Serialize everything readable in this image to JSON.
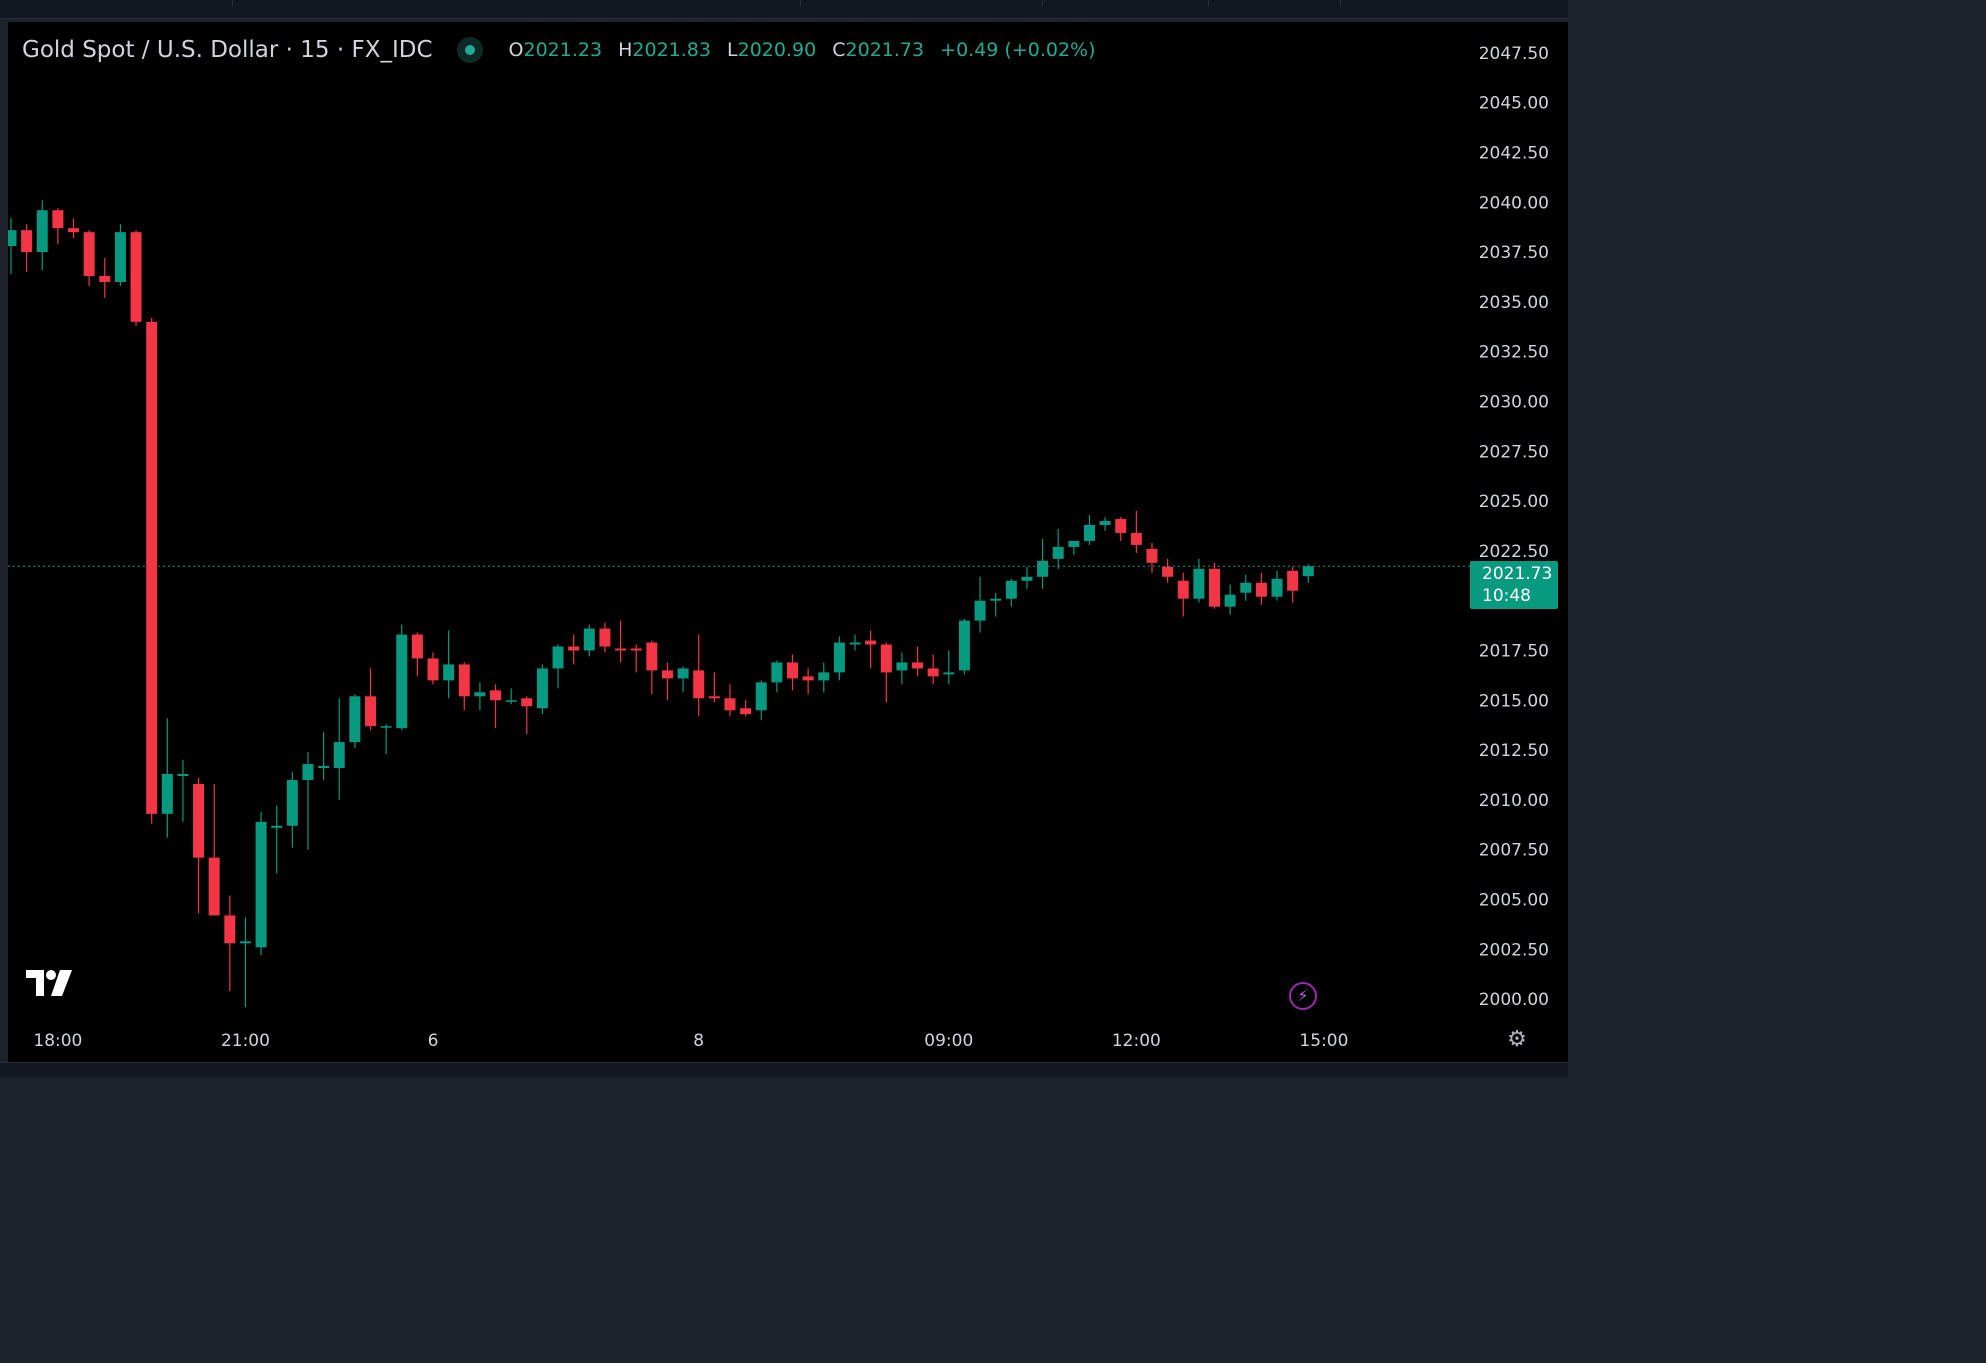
{
  "header": {
    "symbol": "Gold Spot / U.S. Dollar · 15 · FX_IDC",
    "o_label": "O",
    "o_value": "2021.23",
    "h_label": "H",
    "h_value": "2021.83",
    "l_label": "L",
    "l_value": "2020.90",
    "c_label": "C",
    "c_value": "2021.73",
    "change": "+0.49 (+0.02%)"
  },
  "last_price": {
    "price": "2021.73",
    "countdown": "10:48"
  },
  "icons": {
    "logo": "tradingview-logo-icon",
    "bolt": "lightning-bolt-icon",
    "gear": "gear-icon",
    "live": "market-open-dot-icon"
  },
  "colors": {
    "background": "#000000",
    "up": "#089981",
    "down": "#f23645",
    "axis_text": "#d1d4dc",
    "price_line": "#089981"
  },
  "chart_data": {
    "type": "candlestick",
    "title": "Gold Spot / U.S. Dollar · 15 · FX_IDC",
    "ylim": [
      1998.85,
      2049.05
    ],
    "y_ticks": [
      "2000.00",
      "2002.50",
      "2005.00",
      "2007.50",
      "2010.00",
      "2012.50",
      "2015.00",
      "2017.50",
      "2020.00",
      "2022.50",
      "2025.00",
      "2027.50",
      "2030.00",
      "2032.50",
      "2035.00",
      "2037.50",
      "2040.00",
      "2042.50",
      "2045.00",
      "2047.50"
    ],
    "x_ticks": [
      {
        "label": "18:00",
        "bar": 3
      },
      {
        "label": "21:00",
        "bar": 15
      },
      {
        "label": "6",
        "bar": 27
      },
      {
        "label": "8",
        "bar": 44
      },
      {
        "label": "09:00",
        "bar": 60
      },
      {
        "label": "12:00",
        "bar": 72
      },
      {
        "label": "15:00",
        "bar": 84
      }
    ],
    "last_price": 2021.73,
    "grid": false,
    "candles": [
      {
        "o": 2037.8,
        "h": 2039.2,
        "l": 2036.4,
        "c": 2038.6
      },
      {
        "o": 2038.6,
        "h": 2038.9,
        "l": 2036.5,
        "c": 2037.5
      },
      {
        "o": 2037.5,
        "h": 2040.1,
        "l": 2036.6,
        "c": 2039.6
      },
      {
        "o": 2039.6,
        "h": 2039.7,
        "l": 2037.9,
        "c": 2038.7
      },
      {
        "o": 2038.7,
        "h": 2039.2,
        "l": 2038.2,
        "c": 2038.5
      },
      {
        "o": 2038.5,
        "h": 2038.6,
        "l": 2035.8,
        "c": 2036.3
      },
      {
        "o": 2036.3,
        "h": 2037.2,
        "l": 2035.2,
        "c": 2036.0
      },
      {
        "o": 2036.0,
        "h": 2038.9,
        "l": 2035.8,
        "c": 2038.5
      },
      {
        "o": 2038.5,
        "h": 2038.6,
        "l": 2033.8,
        "c": 2034.0
      },
      {
        "o": 2034.0,
        "h": 2034.2,
        "l": 2008.8,
        "c": 2009.3
      },
      {
        "o": 2009.3,
        "h": 2014.1,
        "l": 2008.1,
        "c": 2011.3
      },
      {
        "o": 2011.2,
        "h": 2012.0,
        "l": 2008.9,
        "c": 2011.3
      },
      {
        "o": 2010.8,
        "h": 2011.1,
        "l": 2004.3,
        "c": 2007.1
      },
      {
        "o": 2007.1,
        "h": 2010.8,
        "l": 2004.2,
        "c": 2004.2
      },
      {
        "o": 2004.2,
        "h": 2005.2,
        "l": 2000.4,
        "c": 2002.8
      },
      {
        "o": 2002.8,
        "h": 2004.1,
        "l": 1999.6,
        "c": 2002.9
      },
      {
        "o": 2002.6,
        "h": 2009.4,
        "l": 2002.2,
        "c": 2008.9
      },
      {
        "o": 2008.6,
        "h": 2009.7,
        "l": 2006.3,
        "c": 2008.7
      },
      {
        "o": 2008.7,
        "h": 2011.4,
        "l": 2007.6,
        "c": 2011.0
      },
      {
        "o": 2011.0,
        "h": 2012.4,
        "l": 2007.5,
        "c": 2011.8
      },
      {
        "o": 2011.6,
        "h": 2013.4,
        "l": 2011.0,
        "c": 2011.7
      },
      {
        "o": 2011.6,
        "h": 2015.1,
        "l": 2010.0,
        "c": 2012.9
      },
      {
        "o": 2012.9,
        "h": 2015.3,
        "l": 2012.6,
        "c": 2015.2
      },
      {
        "o": 2015.2,
        "h": 2016.6,
        "l": 2013.5,
        "c": 2013.7
      },
      {
        "o": 2013.7,
        "h": 2013.8,
        "l": 2012.3,
        "c": 2013.7
      },
      {
        "o": 2013.6,
        "h": 2018.8,
        "l": 2013.5,
        "c": 2018.3
      },
      {
        "o": 2018.3,
        "h": 2018.4,
        "l": 2016.2,
        "c": 2017.1
      },
      {
        "o": 2017.1,
        "h": 2017.4,
        "l": 2015.8,
        "c": 2016.0
      },
      {
        "o": 2016.0,
        "h": 2018.5,
        "l": 2015.1,
        "c": 2016.8
      },
      {
        "o": 2016.8,
        "h": 2016.9,
        "l": 2014.5,
        "c": 2015.2
      },
      {
        "o": 2015.2,
        "h": 2015.9,
        "l": 2014.5,
        "c": 2015.4
      },
      {
        "o": 2015.5,
        "h": 2015.8,
        "l": 2013.6,
        "c": 2015.0
      },
      {
        "o": 2015.0,
        "h": 2015.6,
        "l": 2014.8,
        "c": 2015.0
      },
      {
        "o": 2015.1,
        "h": 2015.2,
        "l": 2013.3,
        "c": 2014.7
      },
      {
        "o": 2014.6,
        "h": 2016.8,
        "l": 2014.3,
        "c": 2016.6
      },
      {
        "o": 2016.6,
        "h": 2017.8,
        "l": 2015.6,
        "c": 2017.7
      },
      {
        "o": 2017.7,
        "h": 2018.3,
        "l": 2016.8,
        "c": 2017.5
      },
      {
        "o": 2017.5,
        "h": 2018.8,
        "l": 2017.2,
        "c": 2018.6
      },
      {
        "o": 2018.6,
        "h": 2018.9,
        "l": 2017.4,
        "c": 2017.7
      },
      {
        "o": 2017.6,
        "h": 2019.0,
        "l": 2016.9,
        "c": 2017.5
      },
      {
        "o": 2017.6,
        "h": 2017.8,
        "l": 2016.4,
        "c": 2017.5
      },
      {
        "o": 2017.9,
        "h": 2018.0,
        "l": 2015.3,
        "c": 2016.5
      },
      {
        "o": 2016.5,
        "h": 2016.9,
        "l": 2015.0,
        "c": 2016.1
      },
      {
        "o": 2016.1,
        "h": 2016.7,
        "l": 2015.4,
        "c": 2016.6
      },
      {
        "o": 2016.5,
        "h": 2018.3,
        "l": 2014.2,
        "c": 2015.1
      },
      {
        "o": 2015.2,
        "h": 2016.4,
        "l": 2014.9,
        "c": 2015.1
      },
      {
        "o": 2015.1,
        "h": 2015.8,
        "l": 2014.2,
        "c": 2014.5
      },
      {
        "o": 2014.6,
        "h": 2015.0,
        "l": 2014.2,
        "c": 2014.3
      },
      {
        "o": 2014.5,
        "h": 2016.0,
        "l": 2014.0,
        "c": 2015.9
      },
      {
        "o": 2015.9,
        "h": 2017.0,
        "l": 2015.4,
        "c": 2016.9
      },
      {
        "o": 2016.9,
        "h": 2017.3,
        "l": 2015.5,
        "c": 2016.1
      },
      {
        "o": 2016.2,
        "h": 2016.6,
        "l": 2015.3,
        "c": 2016.0
      },
      {
        "o": 2016.0,
        "h": 2016.9,
        "l": 2015.4,
        "c": 2016.4
      },
      {
        "o": 2016.4,
        "h": 2018.2,
        "l": 2016.0,
        "c": 2017.9
      },
      {
        "o": 2017.8,
        "h": 2018.3,
        "l": 2017.5,
        "c": 2017.9
      },
      {
        "o": 2018.0,
        "h": 2018.5,
        "l": 2016.6,
        "c": 2017.8
      },
      {
        "o": 2017.8,
        "h": 2017.9,
        "l": 2014.9,
        "c": 2016.4
      },
      {
        "o": 2016.5,
        "h": 2017.4,
        "l": 2015.8,
        "c": 2016.9
      },
      {
        "o": 2016.9,
        "h": 2017.7,
        "l": 2016.2,
        "c": 2016.6
      },
      {
        "o": 2016.6,
        "h": 2017.3,
        "l": 2015.8,
        "c": 2016.2
      },
      {
        "o": 2016.3,
        "h": 2017.5,
        "l": 2015.8,
        "c": 2016.4
      },
      {
        "o": 2016.5,
        "h": 2019.1,
        "l": 2016.3,
        "c": 2019.0
      },
      {
        "o": 2019.0,
        "h": 2021.2,
        "l": 2018.4,
        "c": 2020.0
      },
      {
        "o": 2020.0,
        "h": 2020.4,
        "l": 2019.2,
        "c": 2020.1
      },
      {
        "o": 2020.1,
        "h": 2021.1,
        "l": 2019.7,
        "c": 2021.0
      },
      {
        "o": 2021.0,
        "h": 2021.7,
        "l": 2020.6,
        "c": 2021.2
      },
      {
        "o": 2021.2,
        "h": 2023.1,
        "l": 2020.6,
        "c": 2022.0
      },
      {
        "o": 2022.1,
        "h": 2023.6,
        "l": 2021.6,
        "c": 2022.7
      },
      {
        "o": 2022.7,
        "h": 2023.0,
        "l": 2022.3,
        "c": 2023.0
      },
      {
        "o": 2023.0,
        "h": 2024.3,
        "l": 2022.8,
        "c": 2023.8
      },
      {
        "o": 2023.8,
        "h": 2024.2,
        "l": 2023.5,
        "c": 2024.0
      },
      {
        "o": 2024.1,
        "h": 2024.2,
        "l": 2023.0,
        "c": 2023.4
      },
      {
        "o": 2023.4,
        "h": 2024.5,
        "l": 2022.4,
        "c": 2022.8
      },
      {
        "o": 2022.6,
        "h": 2022.9,
        "l": 2021.4,
        "c": 2021.9
      },
      {
        "o": 2021.7,
        "h": 2022.1,
        "l": 2020.9,
        "c": 2021.2
      },
      {
        "o": 2021.0,
        "h": 2021.4,
        "l": 2019.2,
        "c": 2020.1
      },
      {
        "o": 2020.1,
        "h": 2022.1,
        "l": 2019.9,
        "c": 2021.6
      },
      {
        "o": 2021.6,
        "h": 2021.9,
        "l": 2019.6,
        "c": 2019.7
      },
      {
        "o": 2019.7,
        "h": 2020.8,
        "l": 2019.3,
        "c": 2020.3
      },
      {
        "o": 2020.4,
        "h": 2021.3,
        "l": 2020.0,
        "c": 2020.9
      },
      {
        "o": 2020.9,
        "h": 2021.4,
        "l": 2019.8,
        "c": 2020.2
      },
      {
        "o": 2020.2,
        "h": 2021.5,
        "l": 2020.0,
        "c": 2021.1
      },
      {
        "o": 2021.5,
        "h": 2021.7,
        "l": 2019.9,
        "c": 2020.5
      },
      {
        "o": 2021.23,
        "h": 2021.83,
        "l": 2020.9,
        "c": 2021.73
      }
    ]
  }
}
